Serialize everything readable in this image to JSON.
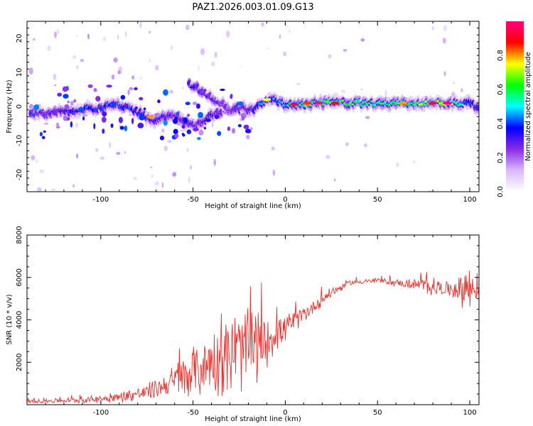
{
  "chart_data": [
    {
      "type": "heatmap",
      "title": "PAZ1.2026.003.01.09.G13",
      "xlabel": "Height of straight line (km)",
      "ylabel": "Frequency (Hz)",
      "xlim": [
        -140,
        105
      ],
      "ylim": [
        -25,
        25
      ],
      "xticks": [
        -100,
        -50,
        0,
        50,
        100
      ],
      "yticks": [
        -20,
        -10,
        0,
        10,
        20
      ],
      "colorbar": {
        "label": "Normalized spectral amplitude",
        "range": [
          0,
          1
        ],
        "ticks": [
          0.0,
          0.2,
          0.4,
          0.6,
          0.8
        ],
        "colors": [
          "#ffffff",
          "#d9b8ff",
          "#8a2be2",
          "#0000ff",
          "#00ffff",
          "#00ff00",
          "#ffff00",
          "#ff0000",
          "#ff007f"
        ]
      },
      "ridge": [
        {
          "x": -138,
          "y": -2.0,
          "amp": 0.3
        },
        {
          "x": -130,
          "y": -2.2,
          "amp": 0.28
        },
        {
          "x": -120,
          "y": -1.5,
          "amp": 0.33
        },
        {
          "x": -110,
          "y": -0.8,
          "amp": 0.4
        },
        {
          "x": -100,
          "y": -0.5,
          "amp": 0.38
        },
        {
          "x": -92,
          "y": 0.5,
          "amp": 0.42
        },
        {
          "x": -85,
          "y": -0.5,
          "amp": 0.4
        },
        {
          "x": -77,
          "y": -2.5,
          "amp": 0.35
        },
        {
          "x": -70,
          "y": -4.0,
          "amp": 0.32
        },
        {
          "x": -62,
          "y": -2.0,
          "amp": 0.3
        },
        {
          "x": -55,
          "y": -4.5,
          "amp": 0.3
        },
        {
          "x": -48,
          "y": -5.5,
          "amp": 0.28
        },
        {
          "x": -40,
          "y": -2.5,
          "amp": 0.3
        },
        {
          "x": -32,
          "y": -1.0,
          "amp": 0.32
        },
        {
          "x": -25,
          "y": -0.5,
          "amp": 0.3
        },
        {
          "x": -18,
          "y": -1.0,
          "amp": 0.3
        },
        {
          "x": -12,
          "y": 1.5,
          "amp": 0.45
        },
        {
          "x": -5,
          "y": 1.8,
          "amp": 0.45
        },
        {
          "x": 0,
          "y": 0.5,
          "amp": 0.5
        },
        {
          "x": 8,
          "y": 0.5,
          "amp": 0.55
        },
        {
          "x": 15,
          "y": 1.0,
          "amp": 0.6
        },
        {
          "x": 25,
          "y": 1.2,
          "amp": 0.62
        },
        {
          "x": 40,
          "y": 1.0,
          "amp": 0.6
        },
        {
          "x": 55,
          "y": 1.0,
          "amp": 0.6
        },
        {
          "x": 70,
          "y": 1.0,
          "amp": 0.62
        },
        {
          "x": 85,
          "y": 1.0,
          "amp": 0.75
        },
        {
          "x": 95,
          "y": 0.8,
          "amp": 0.6
        },
        {
          "x": 100,
          "y": 1.5,
          "amp": 0.4
        },
        {
          "x": 104,
          "y": -0.5,
          "amp": 0.3
        }
      ],
      "secondary_branch": [
        {
          "x": -52,
          "y": 6.5,
          "amp": 0.35
        },
        {
          "x": -45,
          "y": 4.5,
          "amp": 0.3
        },
        {
          "x": -38,
          "y": 2.0,
          "amp": 0.28
        },
        {
          "x": -30,
          "y": -1.0,
          "amp": 0.25
        }
      ],
      "hotspots": [
        {
          "x": 5,
          "y": 0.6,
          "amp": 0.95
        },
        {
          "x": 12,
          "y": 1.0,
          "amp": 0.85
        },
        {
          "x": 18,
          "y": 1.0,
          "amp": 1.0
        },
        {
          "x": 27,
          "y": 1.0,
          "amp": 0.9
        },
        {
          "x": 64,
          "y": 1.0,
          "amp": 0.8
        },
        {
          "x": 80,
          "y": 1.0,
          "amp": 0.95
        },
        {
          "x": 88,
          "y": 1.0,
          "amp": 1.0
        },
        {
          "x": -73,
          "y": -3.0,
          "amp": 0.8
        },
        {
          "x": -10,
          "y": 2.0,
          "amp": 0.75
        }
      ]
    },
    {
      "type": "line",
      "xlabel": "Height of straight line (km)",
      "ylabel": "SNR (10 * v/v)",
      "xlim": [
        -140,
        105
      ],
      "ylim": [
        0,
        8000
      ],
      "xticks": [
        -100,
        -50,
        0,
        50,
        100
      ],
      "yticks": [
        2000,
        4000,
        6000,
        8000
      ],
      "color": "#e8322d",
      "envelope": [
        {
          "x": -140,
          "y": 150,
          "amp": 80
        },
        {
          "x": -110,
          "y": 220,
          "amp": 150
        },
        {
          "x": -90,
          "y": 350,
          "amp": 250
        },
        {
          "x": -75,
          "y": 600,
          "amp": 400
        },
        {
          "x": -65,
          "y": 900,
          "amp": 600
        },
        {
          "x": -55,
          "y": 1300,
          "amp": 1100
        },
        {
          "x": -45,
          "y": 1800,
          "amp": 1500
        },
        {
          "x": -35,
          "y": 2200,
          "amp": 1800
        },
        {
          "x": -25,
          "y": 2500,
          "amp": 2000
        },
        {
          "x": -18,
          "y": 2600,
          "amp": 2000
        },
        {
          "x": -12,
          "y": 2900,
          "amp": 1500
        },
        {
          "x": -5,
          "y": 3400,
          "amp": 900
        },
        {
          "x": 5,
          "y": 3900,
          "amp": 500
        },
        {
          "x": 15,
          "y": 4600,
          "amp": 350
        },
        {
          "x": 25,
          "y": 5300,
          "amp": 250
        },
        {
          "x": 35,
          "y": 5750,
          "amp": 120
        },
        {
          "x": 50,
          "y": 5850,
          "amp": 120
        },
        {
          "x": 65,
          "y": 5700,
          "amp": 200
        },
        {
          "x": 78,
          "y": 5600,
          "amp": 450
        },
        {
          "x": 88,
          "y": 5450,
          "amp": 350
        },
        {
          "x": 95,
          "y": 5500,
          "amp": 800
        },
        {
          "x": 100,
          "y": 5500,
          "amp": 1500
        },
        {
          "x": 105,
          "y": 5400,
          "amp": 200
        }
      ]
    }
  ]
}
